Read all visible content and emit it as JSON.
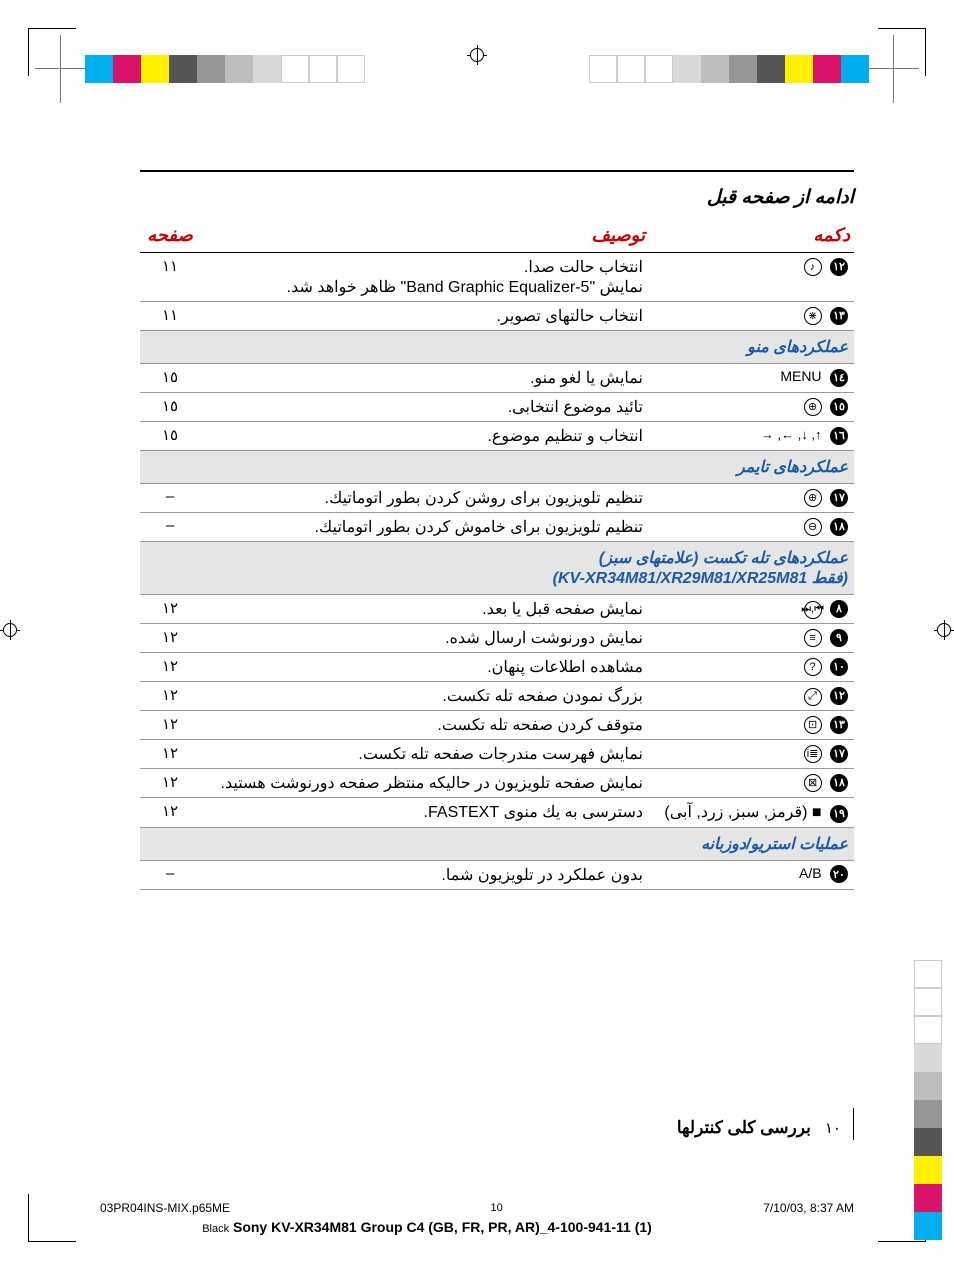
{
  "colorbar": [
    "#00adee",
    "#d9126a",
    "#fff100",
    "#555555",
    "#969696",
    "#bdbdbd",
    "#d9d9d9",
    "#ffffff",
    "#ffffff",
    "#ffffff"
  ],
  "colorbar_r": [
    "#ffffff",
    "#ffffff",
    "#ffffff",
    "#d9d9d9",
    "#bdbdbd",
    "#969696",
    "#555555",
    "#fff100",
    "#d9126a",
    "#00adee"
  ],
  "colorbar_side": [
    "#ffffff",
    "#ffffff",
    "#ffffff",
    "#d9d9d9",
    "#bdbdbd",
    "#969696",
    "#555555",
    "#fff100",
    "#d9126a",
    "#00adee"
  ],
  "heading_cont": "ادامه از صفحه قبل",
  "headers": {
    "button": "دکمه",
    "desc": "توصیف",
    "page": "صفحه"
  },
  "rows": [
    {
      "num": "١٢",
      "icon": "♪",
      "desc": "انتخاب حالت صدا.\nنمایش \"5-Band Graphic Equalizer\" ظاهر خواهد شد.",
      "page": "١١"
    },
    {
      "num": "١٣",
      "icon": "⋇",
      "desc": "انتخاب حالتهای تصویر.",
      "page": "١١"
    }
  ],
  "section_menu": "عملکردهای منو",
  "rows_menu": [
    {
      "num": "١٤",
      "icon": "MENU",
      "desc": "نمایش یا لغو منو.",
      "page": "١٥"
    },
    {
      "num": "١٥",
      "icon": "⊕",
      "desc": "تائید موضوع انتخابی.",
      "page": "١٥"
    },
    {
      "num": "١٦",
      "icon": "↑, ↓, ←, →",
      "desc": "انتخاب و تنظیم موضوع.",
      "page": "١٥"
    }
  ],
  "section_timer": "عملکردهای تایمر",
  "rows_timer": [
    {
      "num": "١٧",
      "icon": "⊕",
      "desc": "تنظیم تلویزیون برای روشن کردن بطور اتوماتیك.",
      "page": "–"
    },
    {
      "num": "١٨",
      "icon": "⊖",
      "desc": "تنظیم تلویزیون برای خاموش کردن بطور اتوماتیك.",
      "page": "–"
    }
  ],
  "section_teletext": "عملکردهای تله تکست (علامتهای سبز)",
  "section_teletext_sub": "(فقط KV-XR34M81/XR29M81/XR25M81)",
  "rows_teletext": [
    {
      "num": "٨",
      "icon": "⏮,⏭",
      "desc": "نمایش صفحه قبل یا بعد.",
      "page": "١٢"
    },
    {
      "num": "٩",
      "icon": "≡",
      "desc": "نمایش دورنوشت ارسال شده.",
      "page": "١٢"
    },
    {
      "num": "١٠",
      "icon": "?",
      "desc": "مشاهده اطلاعات پنهان.",
      "page": "١٢"
    },
    {
      "num": "١٢",
      "icon": "⤢",
      "desc": "بزرگ نمودن صفحه تله تکست.",
      "page": "١٢"
    },
    {
      "num": "١٣",
      "icon": "⊡",
      "desc": "متوقف کردن صفحه تله تکست.",
      "page": "١٢"
    },
    {
      "num": "١٧",
      "icon": "≣i",
      "desc": "نمایش فهرست مندرجات صفحه تله تکست.",
      "page": "١٢"
    },
    {
      "num": "١٨",
      "icon": "⊠",
      "desc": "نمایش صفحه تلویزیون در حالیکه منتظر صفحه دورنوشت هستید.",
      "page": "١٢"
    },
    {
      "num": "١٩",
      "icon": "■ (قرمز, سبز, زرد, آبی)",
      "desc": "دسترسی به یك منوی FASTEXT.",
      "page": "١٢",
      "icon_is_text": true
    }
  ],
  "section_stereo": "عملیات استریو/دوزبانه",
  "rows_stereo": [
    {
      "num": "٢٠",
      "icon": "A/B",
      "desc": "بدون عملکرد در تلویزیون شما.",
      "page": "–"
    }
  ],
  "footer": {
    "page_fa": "١٠",
    "section_name": "بررسی کلی کنترلها"
  },
  "meta": {
    "file": "03PR04INS-MIX.p65ME",
    "pg": "10",
    "ts": "7/10/03, 8:37 AM",
    "black": "Black",
    "model": "Sony KV-XR34M81 Group C4 (GB, FR, PR, AR)_4-100-941-11 (1)"
  }
}
